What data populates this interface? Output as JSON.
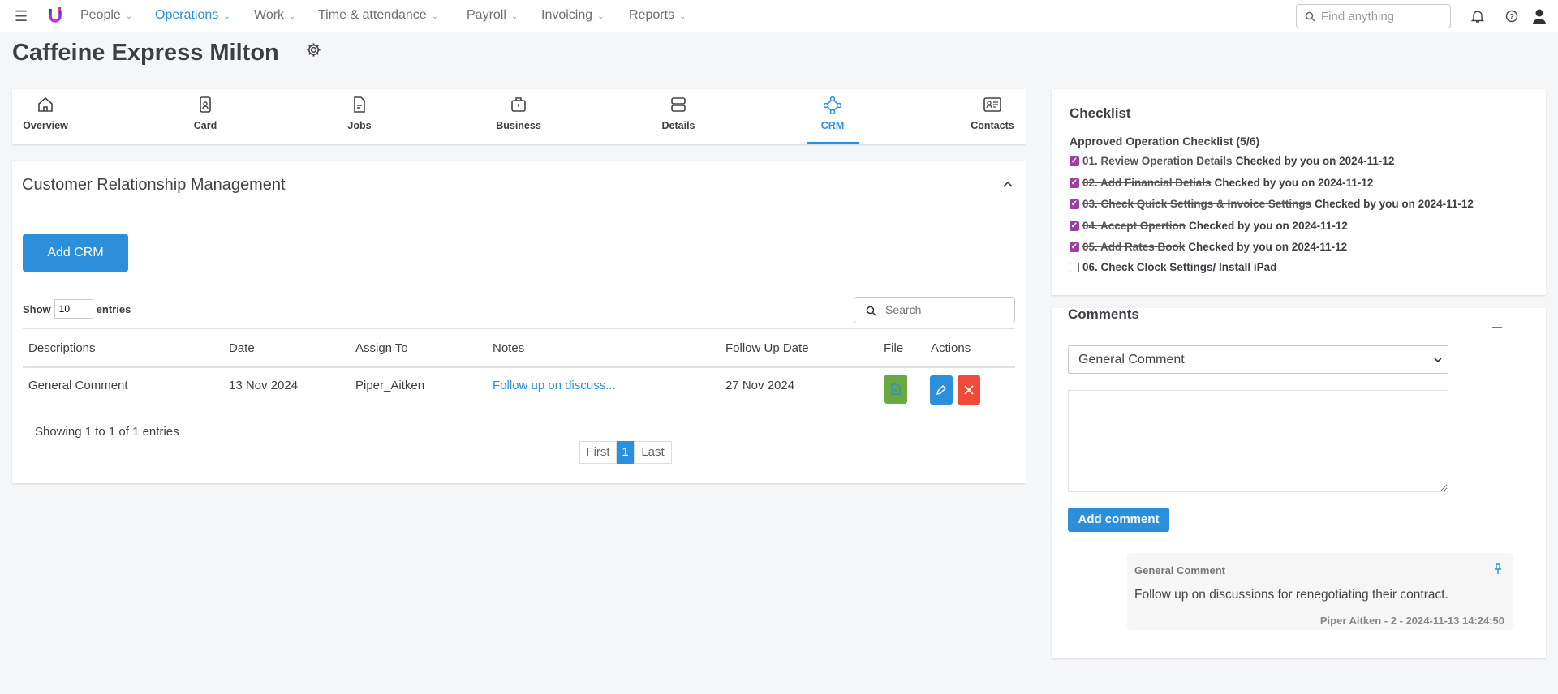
{
  "nav": {
    "items": [
      {
        "label": "People",
        "active": false
      },
      {
        "label": "Operations",
        "active": true
      },
      {
        "label": "Work",
        "active": false
      },
      {
        "label": "Time & attendance",
        "active": false
      },
      {
        "label": "Payroll",
        "active": false
      },
      {
        "label": "Invoicing",
        "active": false
      },
      {
        "label": "Reports",
        "active": false
      }
    ],
    "search_placeholder": "Find anything"
  },
  "page": {
    "title": "Caffeine Express Milton"
  },
  "tabs": [
    {
      "label": "Overview",
      "icon": "home-icon"
    },
    {
      "label": "Card",
      "icon": "id-badge-icon"
    },
    {
      "label": "Jobs",
      "icon": "document-icon"
    },
    {
      "label": "Business",
      "icon": "briefcase-icon"
    },
    {
      "label": "Details",
      "icon": "server-icon"
    },
    {
      "label": "CRM",
      "icon": "crm-network-icon",
      "active": true
    },
    {
      "label": "Contacts",
      "icon": "contact-card-icon"
    }
  ],
  "crm": {
    "heading": "Customer Relationship Management",
    "add_button": "Add CRM",
    "show_label": "Show",
    "entries_value": "10",
    "entries_label": "entries",
    "search_placeholder": "Search",
    "columns": [
      "Descriptions",
      "Date",
      "Assign To",
      "Notes",
      "Follow Up Date",
      "File",
      "Actions"
    ],
    "rows": [
      {
        "description": "General Comment",
        "date": "13 Nov 2024",
        "assign_to": "Piper_Aitken",
        "notes": "Follow up on discuss...",
        "follow_up": "27 Nov 2024"
      }
    ],
    "info": "Showing 1 to 1 of 1 entries",
    "pagination": {
      "first": "First",
      "current": "1",
      "last": "Last"
    }
  },
  "checklist": {
    "title": "Checklist",
    "subtitle": "Approved Operation Checklist (5/6)",
    "items": [
      {
        "label": "01. Review Operation Details",
        "checked": true,
        "meta": "Checked by you on 2024-11-12"
      },
      {
        "label": "02. Add Financial Detials",
        "checked": true,
        "meta": "Checked by you on 2024-11-12"
      },
      {
        "label": "03. Check Quick Settings & Invoice Settings",
        "checked": true,
        "meta": "Checked by you on 2024-11-12"
      },
      {
        "label": "04. Accept Opertion",
        "checked": true,
        "meta": "Checked by you on 2024-11-12"
      },
      {
        "label": "05. Add Rates Book",
        "checked": true,
        "meta": "Checked by you on 2024-11-12"
      },
      {
        "label": "06. Check Clock Settings/ Install iPad",
        "checked": false,
        "meta": ""
      }
    ]
  },
  "comments": {
    "title": "Comments",
    "type_selected": "General Comment",
    "textarea_value": "",
    "add_button": "Add comment",
    "list": [
      {
        "type": "General Comment",
        "body": "Follow up on discussions for renegotiating their contract.",
        "meta": "Piper Aitken - 2 - 2024-11-13 14:24:50"
      }
    ]
  },
  "colors": {
    "accent": "#2b8fdc",
    "check": "#9b3fa0",
    "file_button": "#6aa842",
    "delete_button": "#f04a3a"
  }
}
